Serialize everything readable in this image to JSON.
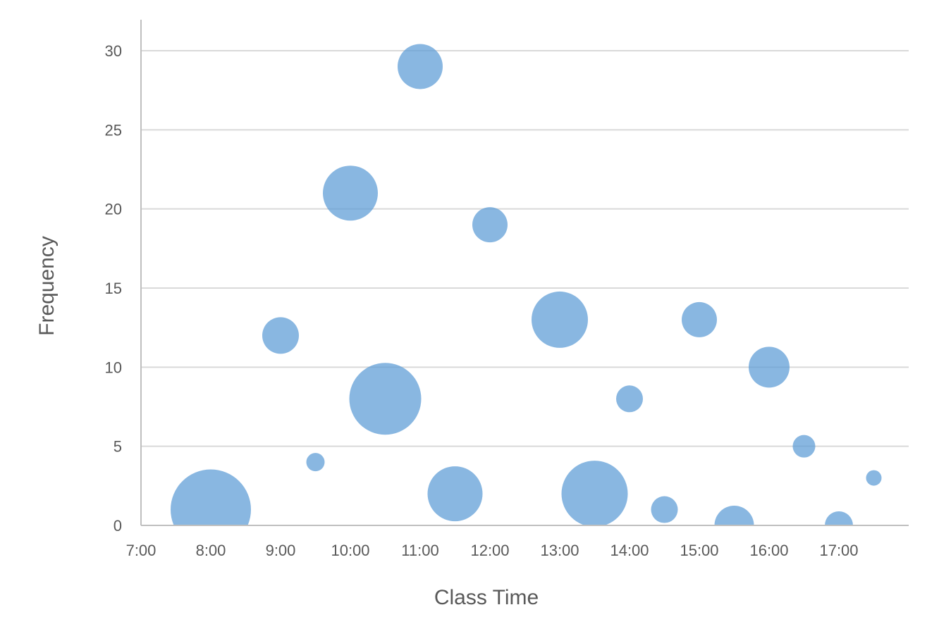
{
  "chart_data": {
    "type": "bubble",
    "title": "",
    "xlabel": "Class Time",
    "ylabel": "Frequency",
    "xlim": [
      "7:00",
      "18:00"
    ],
    "ylim": [
      0,
      30
    ],
    "x_ticks": [
      "7:00",
      "8:00",
      "9:00",
      "10:00",
      "11:00",
      "12:00",
      "13:00",
      "14:00",
      "15:00",
      "16:00",
      "17:00"
    ],
    "y_ticks": [
      "0",
      "5",
      "10",
      "15",
      "20",
      "25",
      "30"
    ],
    "grid": true,
    "legend": "none",
    "color": "#5b9bd5",
    "points": [
      {
        "x": "8:00",
        "y": 1,
        "size": 57
      },
      {
        "x": "9:00",
        "y": 12,
        "size": 26
      },
      {
        "x": "9:30",
        "y": 4,
        "size": 13
      },
      {
        "x": "10:00",
        "y": 21,
        "size": 39
      },
      {
        "x": "10:30",
        "y": 8,
        "size": 51
      },
      {
        "x": "11:00",
        "y": 29,
        "size": 32
      },
      {
        "x": "11:30",
        "y": 2,
        "size": 39
      },
      {
        "x": "12:00",
        "y": 19,
        "size": 25
      },
      {
        "x": "13:00",
        "y": 13,
        "size": 40
      },
      {
        "x": "13:30",
        "y": 2,
        "size": 47
      },
      {
        "x": "14:00",
        "y": 8,
        "size": 19
      },
      {
        "x": "14:30",
        "y": 1,
        "size": 19
      },
      {
        "x": "15:00",
        "y": 13,
        "size": 25
      },
      {
        "x": "15:30",
        "y": 0,
        "size": 28
      },
      {
        "x": "16:00",
        "y": 10,
        "size": 29
      },
      {
        "x": "16:30",
        "y": 5,
        "size": 16
      },
      {
        "x": "17:00",
        "y": 0,
        "size": 20
      },
      {
        "x": "17:30",
        "y": 3,
        "size": 11
      }
    ]
  }
}
